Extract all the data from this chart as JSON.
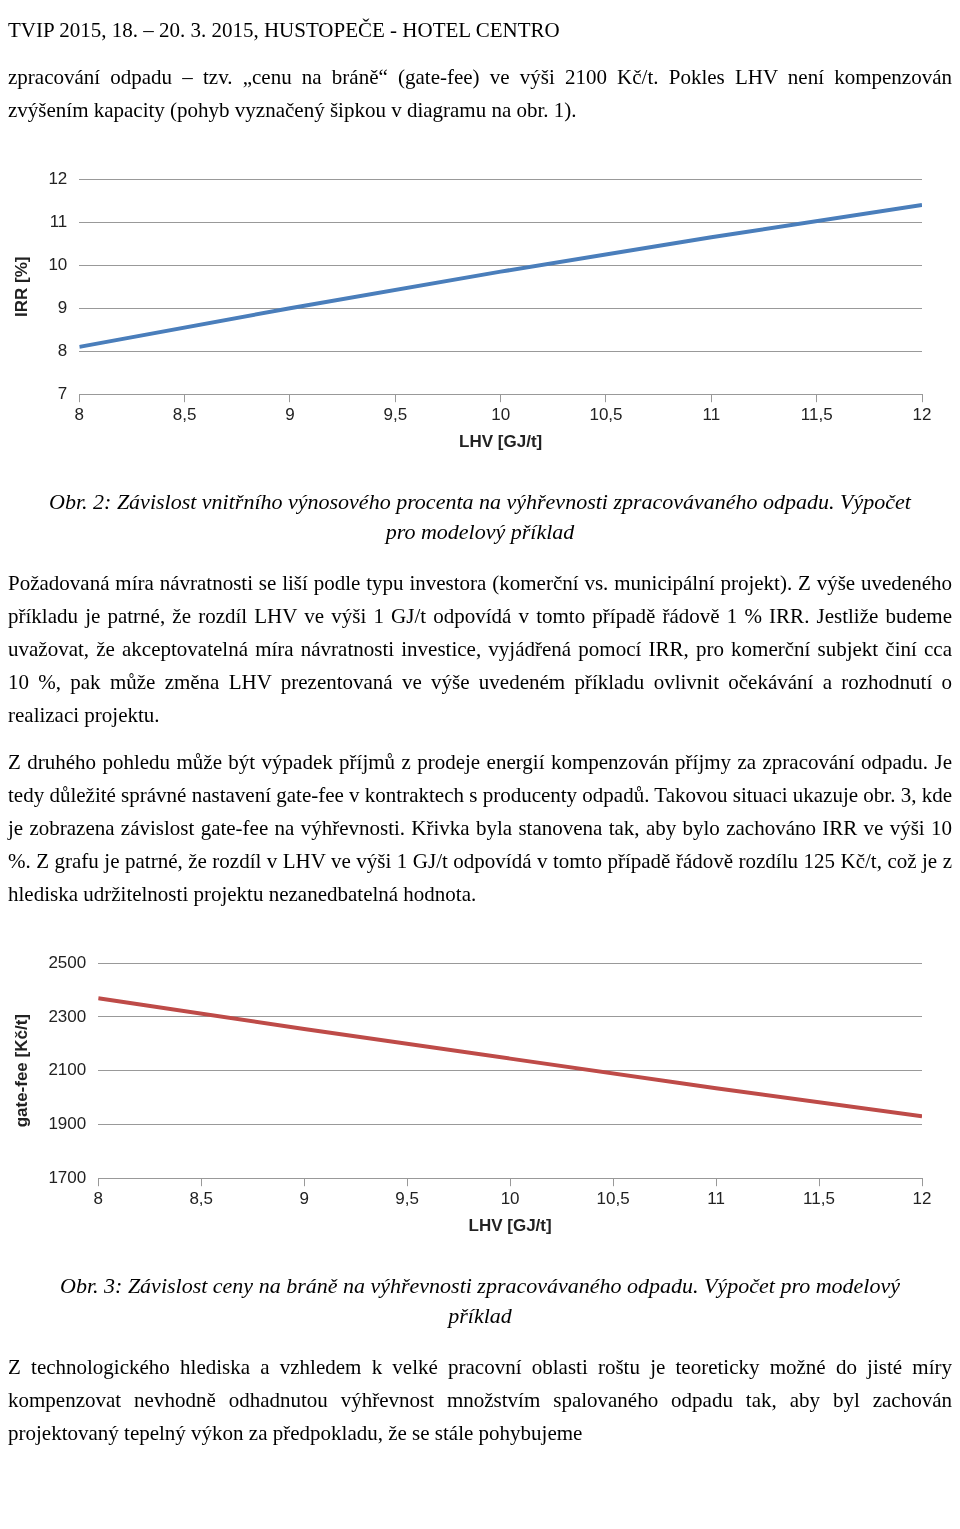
{
  "chart_data": [
    {
      "type": "other",
      "annotations": [
        "TVIP 2015, 18. – 20. 3. 2015, HUSTOPEČE - HOTEL CENTRO",
        "zpracování odpadu – tzv. „cenu na bráně“ (gate-fee) ve výši 2100 Kč/t. Pokles LHV není kompenzován zvýšením kapacity (pohyb vyznačený šipkou v diagramu na obr. 1)."
      ]
    },
    {
      "type": "line",
      "xlabel": "LHV [GJ/t]",
      "ylabel": "IRR [%]",
      "color": "#4a7ebb",
      "x": [
        8,
        9,
        10,
        11,
        12
      ],
      "values": [
        8.1,
        9.0,
        9.85,
        10.65,
        11.4
      ],
      "xlim": [
        8,
        12
      ],
      "xticks": [
        8,
        {
          "value": 8.5,
          "label": "8,5"
        },
        9,
        {
          "value": 9.5,
          "label": "9,5"
        },
        10,
        {
          "value": 10.5,
          "label": "10,5"
        },
        11,
        {
          "value": 11.5,
          "label": "11,5"
        },
        12
      ],
      "ylim": [
        7,
        12
      ],
      "yticks": [
        7,
        8,
        9,
        10,
        11,
        12
      ],
      "grid": "y",
      "annotations": [
        "Obr. 2: Závislost vnitřního výnosového procenta na výhřevnosti zpracovávaného odpadu. Výpočet pro modelový příklad"
      ]
    },
    {
      "type": "other",
      "annotations": [
        "Požadovaná míra návratnosti se liší podle typu investora (komerční vs. municipální projekt). Z výše uvedeného příkladu je patrné, že rozdíl LHV ve výši 1 GJ/t odpovídá v tomto případě řádově 1 % IRR. Jestliže budeme uvažovat, že akceptovatelná míra návratnosti investice, vyjádřená pomocí IRR, pro komerční subjekt činí cca 10 %, pak může změna LHV prezentovaná ve výše uvedeném příkladu ovlivnit očekávání a rozhodnutí o realizaci projektu.",
        "Z druhého pohledu může být výpadek příjmů z prodeje energií kompenzován příjmy za zpracování odpadu. Je tedy důležité správné nastavení gate-fee v kontraktech s producenty odpadů. Takovou situaci ukazuje obr. 3, kde je zobrazena závislost gate-fee na výhřevnosti. Křivka byla stanovena tak, aby bylo zachováno IRR ve výši 10 %. Z grafu je patrné, že rozdíl v LHV ve výši 1 GJ/t odpovídá v tomto případě řádově rozdílu 125 Kč/t, což je z hlediska udržitelnosti projektu nezanedbatelná hodnota."
      ]
    },
    {
      "type": "line",
      "xlabel": "LHV [GJ/t]",
      "ylabel": "gate-fee [Kč/t]",
      "color": "#be4b48",
      "x": [
        8,
        9,
        10,
        11,
        12
      ],
      "values": [
        2370,
        2255,
        2145,
        2035,
        1930
      ],
      "xlim": [
        8,
        12
      ],
      "xticks": [
        8,
        {
          "value": 8.5,
          "label": "8,5"
        },
        9,
        {
          "value": 9.5,
          "label": "9,5"
        },
        10,
        {
          "value": 10.5,
          "label": "10,5"
        },
        11,
        {
          "value": 11.5,
          "label": "11,5"
        },
        12
      ],
      "ylim": [
        1700,
        2500
      ],
      "yticks": [
        1700,
        1900,
        2100,
        2300,
        2500
      ],
      "grid": "y",
      "annotations": [
        "Obr. 3: Závislost ceny na bráně na výhřevnosti zpracovávaného odpadu. Výpočet pro modelový příklad"
      ]
    },
    {
      "type": "other",
      "annotations": [
        "Z technologického hlediska a vzhledem k velké pracovní oblasti roštu je teoreticky možné do jisté míry kompenzovat nevhodně odhadnutou výhřevnost množstvím spalovaného odpadu tak, aby byl zachován projektovaný tepelný výkon za předpokladu, že se stále pohybujeme"
      ]
    }
  ]
}
